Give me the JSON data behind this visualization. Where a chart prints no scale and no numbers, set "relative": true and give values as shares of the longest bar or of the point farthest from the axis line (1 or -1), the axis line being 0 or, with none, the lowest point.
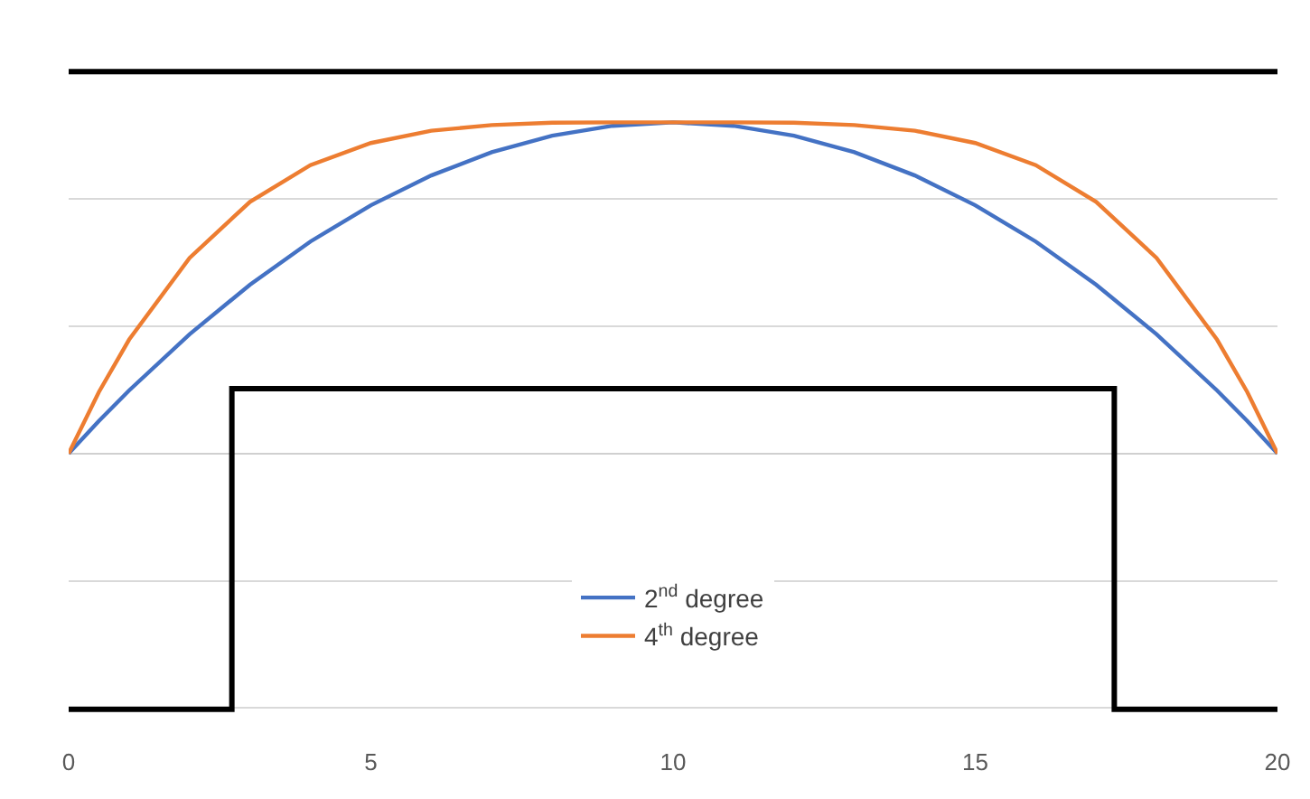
{
  "chart_data": {
    "type": "line",
    "relative": true,
    "xlim": [
      0,
      20
    ],
    "xticks": [
      0,
      5,
      10,
      15,
      20
    ],
    "grid": "y",
    "legend": "bottom",
    "marker": "none",
    "line_style": "solid",
    "series": [
      {
        "color": "#000000",
        "x": [
          0,
          20
        ],
        "values": [
          1,
          1
        ]
      },
      {
        "color": "#000000",
        "x": [
          0,
          2.7,
          2.7,
          17.3,
          17.3,
          20
        ],
        "values": [
          -0.67,
          -0.67,
          0.17,
          0.17,
          -0.67,
          -0.67
        ]
      },
      {
        "name": "2$^{nd}$ degree",
        "color": "#4472c4",
        "x": [
          0,
          0.5,
          1,
          2,
          3,
          4,
          5,
          6,
          7,
          8,
          9,
          10,
          11,
          12,
          13,
          14,
          15,
          16,
          17,
          18,
          19,
          19.5,
          20
        ],
        "values": [
          0,
          0.085,
          0.165,
          0.312,
          0.442,
          0.555,
          0.65,
          0.728,
          0.789,
          0.832,
          0.858,
          0.867,
          0.858,
          0.832,
          0.789,
          0.728,
          0.65,
          0.555,
          0.442,
          0.312,
          0.165,
          0.085,
          0
        ]
      },
      {
        "name": "4$^{th}$ degree",
        "color": "#ed7d31",
        "x": [
          0,
          0.5,
          1,
          2,
          3,
          4,
          5,
          6,
          7,
          8,
          9,
          10,
          11,
          12,
          13,
          14,
          15,
          16,
          17,
          18,
          19,
          19.5,
          20
        ],
        "values": [
          0,
          0.161,
          0.298,
          0.512,
          0.659,
          0.755,
          0.813,
          0.845,
          0.86,
          0.866,
          0.867,
          0.867,
          0.867,
          0.866,
          0.86,
          0.845,
          0.813,
          0.755,
          0.659,
          0.512,
          0.298,
          0.161,
          0
        ]
      }
    ]
  }
}
